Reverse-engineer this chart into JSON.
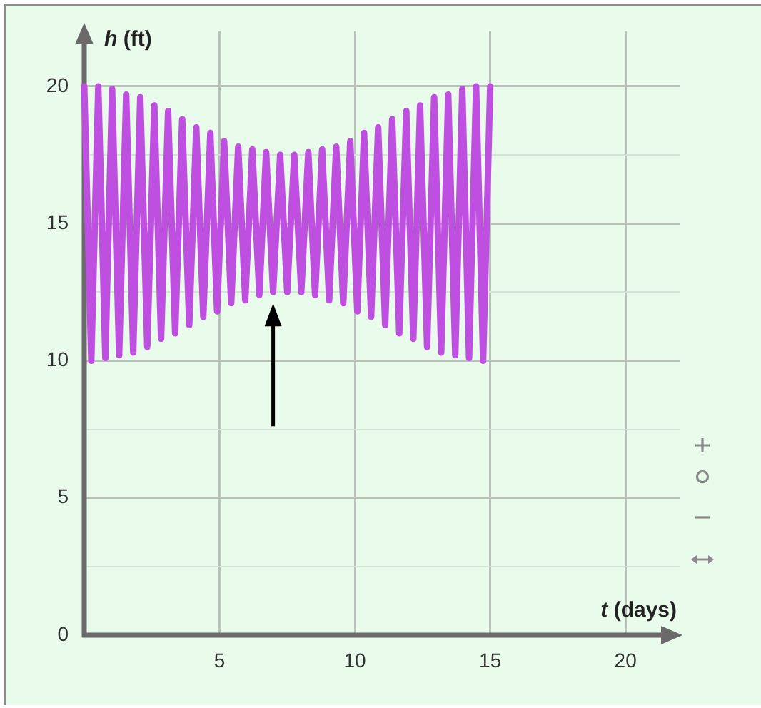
{
  "chart_data": {
    "type": "line",
    "xlabel": "t (days)",
    "ylabel": "h (ft)",
    "x": [
      0,
      0.26,
      0.52,
      0.78,
      1.03,
      1.29,
      1.55,
      1.81,
      2.07,
      2.33,
      2.59,
      2.84,
      3.1,
      3.36,
      3.62,
      3.88,
      4.14,
      4.4,
      4.66,
      4.91,
      5.17,
      5.43,
      5.69,
      5.95,
      6.21,
      6.47,
      6.72,
      6.98,
      7.24,
      7.5,
      7.76,
      8.02,
      8.28,
      8.53,
      8.79,
      9.05,
      9.31,
      9.57,
      9.83,
      10.09,
      10.34,
      10.6,
      10.86,
      11.12,
      11.38,
      11.64,
      11.9,
      12.16,
      12.41,
      12.67,
      12.93,
      13.19,
      13.45,
      13.71,
      13.97,
      14.22,
      14.48,
      14.74,
      15
    ],
    "series": [
      {
        "color": "#bf4fe0",
        "values": [
          20,
          10,
          20,
          10.1,
          19.9,
          10.2,
          19.7,
          10.3,
          19.6,
          10.5,
          19.3,
          10.8,
          19.1,
          11,
          18.8,
          11.3,
          18.5,
          11.6,
          18.3,
          11.8,
          18,
          12.1,
          17.8,
          12.2,
          17.7,
          12.4,
          17.6,
          12.5,
          17.5,
          12.5,
          17.5,
          12.5,
          17.6,
          12.4,
          17.7,
          12.2,
          17.8,
          12.1,
          18,
          11.8,
          18.3,
          11.6,
          18.5,
          11.3,
          18.8,
          11,
          19.1,
          10.8,
          19.3,
          10.5,
          19.6,
          10.3,
          19.7,
          10.2,
          19.9,
          10.1,
          20,
          10,
          20
        ]
      }
    ],
    "xlim": [
      0,
      22
    ],
    "ylim": [
      0,
      22
    ],
    "xticks": [
      5,
      10,
      15,
      20
    ],
    "yticks": [
      0,
      {
        "value": 2.5,
        "label": null
      },
      5,
      {
        "value": 7.5,
        "label": null
      },
      10,
      {
        "value": 12.5,
        "label": null
      },
      15,
      {
        "value": 17.5,
        "label": null
      },
      20
    ],
    "grid": true,
    "marker": "none",
    "line_style": "solid"
  }
}
